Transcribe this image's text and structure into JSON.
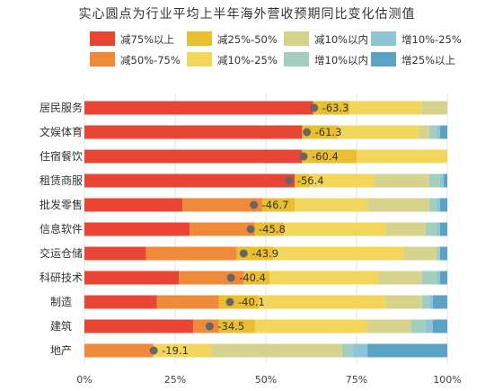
{
  "chart_data": {
    "type": "bar",
    "stacked": true,
    "orientation": "horizontal",
    "title": "实心圆点为行业平均上半年海外营收预期同比变化估测值",
    "categories": [
      "居民服务",
      "文娱体育",
      "住宿餐饮",
      "租赁商服",
      "批发零售",
      "信息软件",
      "交运仓储",
      "科研技术",
      "制造",
      "建筑",
      "地产"
    ],
    "xlim": [
      0,
      100
    ],
    "xticks": [
      "0%",
      "25%",
      "50%",
      "75%",
      "100%"
    ],
    "grid": true,
    "legend_position": "top",
    "series": [
      {
        "name": "减75%以上",
        "color": "#E84534",
        "values": [
          63,
          60,
          60,
          58,
          27,
          29,
          17,
          26,
          20,
          30,
          0
        ]
      },
      {
        "name": "减50%-75%",
        "color": "#EF8A3A",
        "values": [
          0,
          0,
          0,
          0,
          22,
          18,
          25,
          18,
          17,
          7,
          19
        ]
      },
      {
        "name": "减25%-50%",
        "color": "#E9BE2F",
        "values": [
          10,
          10,
          15,
          4,
          9,
          8,
          10,
          7,
          11,
          10,
          0
        ]
      },
      {
        "name": "减10%-25%",
        "color": "#F2D65B",
        "values": [
          20,
          22,
          25,
          18,
          20,
          28,
          36,
          30,
          35,
          31,
          16
        ]
      },
      {
        "name": "减10%以内",
        "color": "#D6D38D",
        "values": [
          7,
          3,
          0,
          15,
          17,
          11,
          9,
          12,
          10,
          12,
          36
        ]
      },
      {
        "name": "增10%以内",
        "color": "#A3CDBF",
        "values": [
          0,
          2,
          0,
          3,
          2,
          3,
          1,
          4,
          2,
          4,
          3
        ]
      },
      {
        "name": "增10%-25%",
        "color": "#8FC3D6",
        "values": [
          0,
          1,
          0,
          1,
          1,
          1,
          0,
          1,
          1,
          2,
          4
        ]
      },
      {
        "name": "增25%以上",
        "color": "#5AA3C4",
        "values": [
          0,
          2,
          0,
          1,
          2,
          2,
          2,
          2,
          4,
          4,
          22
        ]
      }
    ],
    "averages": {
      "name": "行业平均",
      "color": "#666666",
      "values": [
        -63.3,
        -61.3,
        -60.4,
        -56.4,
        -46.7,
        -45.8,
        -43.9,
        -40.4,
        -40.1,
        -34.5,
        -19.1
      ],
      "labels": [
        "-63.3",
        "-61.3",
        "-60.4",
        "-56.4",
        "-46.7",
        "-45.8",
        "-43.9",
        "-40.4",
        "-40.1",
        "-34.5",
        "-19.1"
      ]
    }
  }
}
